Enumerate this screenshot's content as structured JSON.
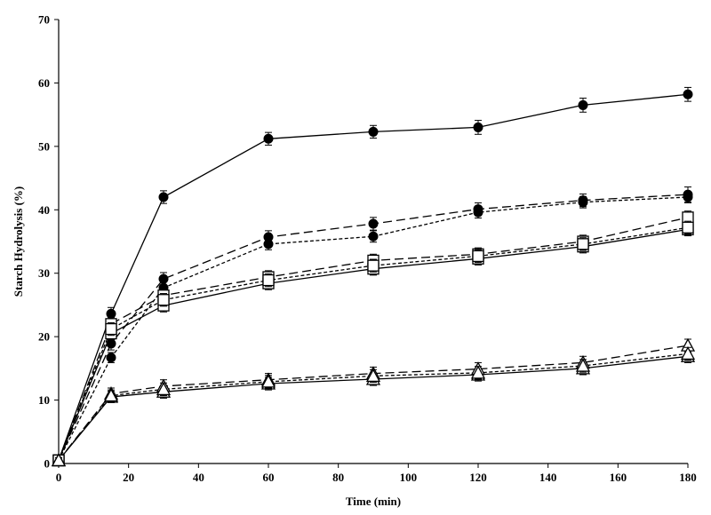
{
  "chart_data": {
    "type": "line",
    "title": "",
    "xlabel": "Time (min)",
    "ylabel": "Starch Hydrolysis (%)",
    "xlim": [
      0,
      180
    ],
    "ylim": [
      0,
      70
    ],
    "xticks": [
      0,
      20,
      40,
      60,
      80,
      100,
      120,
      140,
      160,
      180
    ],
    "yticks": [
      0,
      10,
      20,
      30,
      40,
      50,
      60,
      70
    ],
    "grid": false,
    "legend": "none",
    "x": [
      0,
      15,
      30,
      60,
      90,
      120,
      150,
      180
    ],
    "series": [
      {
        "marker": "circle-filled",
        "line": "solid",
        "values": [
          0.5,
          23.6,
          42.0,
          51.2,
          52.3,
          53.0,
          56.5,
          58.2
        ],
        "err": [
          0.4,
          1.0,
          1.0,
          1.0,
          1.0,
          1.1,
          1.1,
          1.1
        ]
      },
      {
        "marker": "circle-filled",
        "line": "dashed",
        "values": [
          0.5,
          18.9,
          29.1,
          35.7,
          37.8,
          40.1,
          41.5,
          42.4
        ],
        "err": [
          0.4,
          1.0,
          1.0,
          1.0,
          1.0,
          1.0,
          1.0,
          1.2
        ]
      },
      {
        "marker": "circle-filled",
        "line": "dotted",
        "values": [
          0.5,
          16.7,
          27.7,
          34.6,
          35.8,
          39.6,
          41.2,
          42.0
        ],
        "err": [
          0.4,
          0.8,
          1.0,
          0.9,
          0.9,
          0.9,
          0.9,
          0.9
        ]
      },
      {
        "marker": "square-open",
        "line": "solid",
        "values": [
          0.5,
          20.5,
          24.9,
          28.4,
          30.7,
          32.3,
          34.2,
          36.9
        ],
        "err": [
          0.4,
          1.0,
          1.0,
          1.0,
          1.0,
          1.0,
          1.0,
          1.0
        ]
      },
      {
        "marker": "square-open",
        "line": "dashed",
        "values": [
          0.5,
          22.0,
          26.5,
          29.4,
          32.0,
          33.0,
          35.0,
          38.8
        ],
        "err": [
          0.4,
          1.0,
          1.0,
          1.0,
          1.0,
          1.0,
          1.0,
          1.0
        ]
      },
      {
        "marker": "square-open",
        "line": "dotted",
        "values": [
          0.5,
          21.2,
          25.8,
          28.9,
          31.2,
          32.7,
          34.6,
          37.2
        ],
        "err": [
          0.4,
          1.0,
          1.0,
          1.0,
          1.0,
          1.0,
          1.0,
          1.0
        ]
      },
      {
        "marker": "triangle-open",
        "line": "solid",
        "values": [
          0.5,
          10.5,
          11.3,
          12.6,
          13.3,
          14.0,
          15.0,
          16.9
        ],
        "err": [
          0.4,
          0.9,
          1.0,
          1.0,
          1.0,
          1.0,
          1.0,
          1.0
        ]
      },
      {
        "marker": "triangle-open",
        "line": "dashed",
        "values": [
          0.5,
          11.0,
          12.2,
          13.2,
          14.2,
          14.9,
          15.9,
          18.6
        ],
        "err": [
          0.4,
          0.9,
          1.0,
          1.0,
          1.0,
          1.0,
          1.0,
          1.0
        ]
      },
      {
        "marker": "triangle-open",
        "line": "dotted",
        "values": [
          0.5,
          10.7,
          11.7,
          12.9,
          13.8,
          14.3,
          15.4,
          17.3
        ],
        "err": [
          0.4,
          0.9,
          1.0,
          1.0,
          1.0,
          1.0,
          1.0,
          1.0
        ]
      }
    ]
  }
}
